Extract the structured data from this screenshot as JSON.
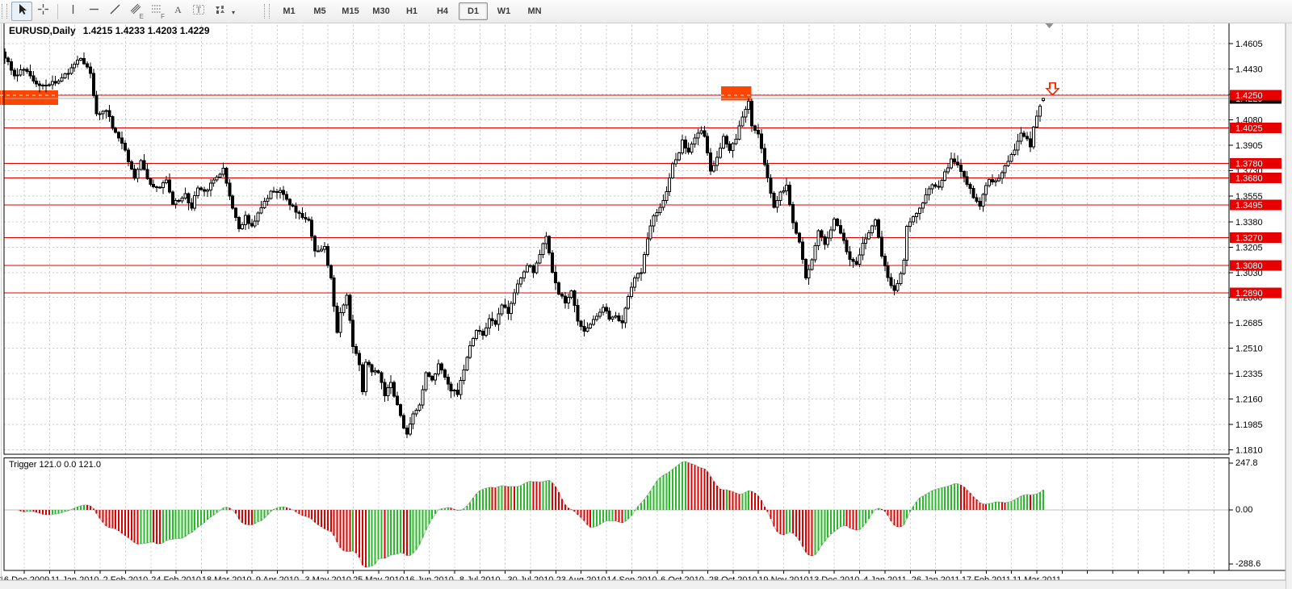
{
  "toolbar": {
    "tools": [
      {
        "id": "cursor",
        "title": "Cursor",
        "active": true
      },
      {
        "id": "crosshair",
        "title": "Crosshair",
        "active": false
      },
      {
        "id": "sep1",
        "separator": true
      },
      {
        "id": "vertical-line",
        "title": "Vertical Line",
        "active": false
      },
      {
        "id": "horizontal-line",
        "title": "Horizontal Line",
        "active": false
      },
      {
        "id": "trendline",
        "title": "Trendline",
        "active": false
      },
      {
        "id": "equidistant-channel",
        "title": "Equidistant Channel",
        "sub": "E",
        "active": false
      },
      {
        "id": "fibonacci",
        "title": "Fibonacci Retracement",
        "sub": "F",
        "active": false
      },
      {
        "id": "text",
        "title": "Text",
        "active": false
      },
      {
        "id": "text-label",
        "title": "Text Label",
        "active": false
      },
      {
        "id": "arrows",
        "title": "Arrows",
        "dropdown": true,
        "active": false
      }
    ],
    "timeframes": [
      "M1",
      "M5",
      "M15",
      "M30",
      "H1",
      "H4",
      "D1",
      "W1",
      "MN"
    ],
    "active_timeframe": "D1"
  },
  "chart": {
    "title": "EURUSD,Daily",
    "ohlc_text": "1.4215 1.4233 1.4203 1.4229",
    "indicator_label": "Trigger 121.0 0.0 121.0"
  },
  "chart_data": {
    "type": "candlestick",
    "symbol": "EURUSD",
    "period": "Daily",
    "last_candle": {
      "open": 1.4215,
      "high": 1.4233,
      "low": 1.4203,
      "close": 1.4229
    },
    "bid": "1.4229",
    "y_ticks": [
      "1.4605",
      "1.4430",
      "1.4255",
      "1.4080",
      "1.3905",
      "1.3730",
      "1.3555",
      "1.3380",
      "1.3205",
      "1.3030",
      "1.2860",
      "1.2685",
      "1.2510",
      "1.2335",
      "1.2160",
      "1.1985",
      "1.1810"
    ],
    "x_labels": [
      "16 Dec 2009",
      "11 Jan 2010",
      "2 Feb 2010",
      "24 Feb 2010",
      "18 Mar 2010",
      "9 Apr 2010",
      "3 May 2010",
      "25 May 2010",
      "16 Jun 2010",
      "8 Jul 2010",
      "30 Jul 2010",
      "23 Aug 2010",
      "14 Sep 2010",
      "6 Oct 2010",
      "28 Oct 2010",
      "19 Nov 2010",
      "13 Dec 2010",
      "4 Jan 2011",
      "26 Jan 2011",
      "17 Feb 2011",
      "11 Mar 2011"
    ],
    "levels": [
      "1.4250",
      "1.4025",
      "1.3780",
      "1.3680",
      "1.3495",
      "1.3270",
      "1.3080",
      "1.2890"
    ],
    "ylim": [
      1.181,
      1.4605
    ],
    "grid": true,
    "candle_count": 329,
    "close_anchors": [
      [
        0,
        1.451
      ],
      [
        3,
        1.438
      ],
      [
        6,
        1.443
      ],
      [
        9,
        1.434
      ],
      [
        13,
        1.432
      ],
      [
        16,
        1.434
      ],
      [
        20,
        1.441
      ],
      [
        24,
        1.451
      ],
      [
        27,
        1.441
      ],
      [
        29,
        1.411
      ],
      [
        32,
        1.415
      ],
      [
        34,
        1.403
      ],
      [
        37,
        1.393
      ],
      [
        40,
        1.374
      ],
      [
        41,
        1.368
      ],
      [
        43,
        1.379
      ],
      [
        46,
        1.363
      ],
      [
        49,
        1.361
      ],
      [
        51,
        1.368
      ],
      [
        53,
        1.351
      ],
      [
        57,
        1.356
      ],
      [
        59,
        1.348
      ],
      [
        61,
        1.362
      ],
      [
        63,
        1.358
      ],
      [
        66,
        1.366
      ],
      [
        69,
        1.374
      ],
      [
        71,
        1.357
      ],
      [
        74,
        1.332
      ],
      [
        76,
        1.341
      ],
      [
        78,
        1.334
      ],
      [
        81,
        1.348
      ],
      [
        84,
        1.358
      ],
      [
        87,
        1.359
      ],
      [
        90,
        1.35
      ],
      [
        93,
        1.343
      ],
      [
        96,
        1.338
      ],
      [
        98,
        1.317
      ],
      [
        101,
        1.32
      ],
      [
        103,
        1.298
      ],
      [
        105,
        1.262
      ],
      [
        106,
        1.276
      ],
      [
        108,
        1.287
      ],
      [
        110,
        1.253
      ],
      [
        112,
        1.24
      ],
      [
        113,
        1.22
      ],
      [
        114,
        1.242
      ],
      [
        116,
        1.236
      ],
      [
        118,
        1.234
      ],
      [
        120,
        1.219
      ],
      [
        122,
        1.227
      ],
      [
        124,
        1.211
      ],
      [
        126,
        1.197
      ],
      [
        127,
        1.192
      ],
      [
        129,
        1.205
      ],
      [
        131,
        1.212
      ],
      [
        133,
        1.233
      ],
      [
        135,
        1.23
      ],
      [
        137,
        1.239
      ],
      [
        139,
        1.231
      ],
      [
        141,
        1.223
      ],
      [
        143,
        1.219
      ],
      [
        145,
        1.237
      ],
      [
        147,
        1.254
      ],
      [
        149,
        1.264
      ],
      [
        151,
        1.259
      ],
      [
        153,
        1.272
      ],
      [
        155,
        1.267
      ],
      [
        157,
        1.282
      ],
      [
        159,
        1.276
      ],
      [
        161,
        1.289
      ],
      [
        163,
        1.299
      ],
      [
        165,
        1.308
      ],
      [
        167,
        1.304
      ],
      [
        169,
        1.316
      ],
      [
        171,
        1.328
      ],
      [
        173,
        1.302
      ],
      [
        175,
        1.288
      ],
      [
        177,
        1.283
      ],
      [
        179,
        1.29
      ],
      [
        181,
        1.271
      ],
      [
        183,
        1.263
      ],
      [
        185,
        1.268
      ],
      [
        187,
        1.273
      ],
      [
        189,
        1.28
      ],
      [
        191,
        1.271
      ],
      [
        193,
        1.272
      ],
      [
        195,
        1.268
      ],
      [
        197,
        1.287
      ],
      [
        199,
        1.299
      ],
      [
        201,
        1.304
      ],
      [
        203,
        1.327
      ],
      [
        205,
        1.342
      ],
      [
        207,
        1.349
      ],
      [
        209,
        1.358
      ],
      [
        211,
        1.379
      ],
      [
        213,
        1.384
      ],
      [
        214,
        1.393
      ],
      [
        216,
        1.386
      ],
      [
        218,
        1.397
      ],
      [
        220,
        1.4
      ],
      [
        221,
        1.397
      ],
      [
        223,
        1.373
      ],
      [
        225,
        1.381
      ],
      [
        227,
        1.396
      ],
      [
        229,
        1.386
      ],
      [
        231,
        1.395
      ],
      [
        233,
        1.411
      ],
      [
        235,
        1.421
      ],
      [
        236,
        1.403
      ],
      [
        238,
        1.398
      ],
      [
        240,
        1.378
      ],
      [
        241,
        1.369
      ],
      [
        243,
        1.348
      ],
      [
        245,
        1.358
      ],
      [
        247,
        1.362
      ],
      [
        249,
        1.337
      ],
      [
        251,
        1.324
      ],
      [
        253,
        1.298
      ],
      [
        255,
        1.313
      ],
      [
        257,
        1.331
      ],
      [
        259,
        1.323
      ],
      [
        261,
        1.332
      ],
      [
        262,
        1.339
      ],
      [
        264,
        1.331
      ],
      [
        265,
        1.324
      ],
      [
        267,
        1.312
      ],
      [
        269,
        1.309
      ],
      [
        271,
        1.322
      ],
      [
        273,
        1.33
      ],
      [
        275,
        1.338
      ],
      [
        277,
        1.315
      ],
      [
        279,
        1.299
      ],
      [
        281,
        1.291
      ],
      [
        282,
        1.295
      ],
      [
        284,
        1.312
      ],
      [
        285,
        1.336
      ],
      [
        287,
        1.342
      ],
      [
        289,
        1.347
      ],
      [
        291,
        1.357
      ],
      [
        293,
        1.362
      ],
      [
        295,
        1.361
      ],
      [
        297,
        1.371
      ],
      [
        299,
        1.381
      ],
      [
        301,
        1.377
      ],
      [
        303,
        1.369
      ],
      [
        305,
        1.36
      ],
      [
        306,
        1.355
      ],
      [
        308,
        1.349
      ],
      [
        309,
        1.357
      ],
      [
        311,
        1.368
      ],
      [
        313,
        1.365
      ],
      [
        315,
        1.373
      ],
      [
        317,
        1.38
      ],
      [
        319,
        1.388
      ],
      [
        321,
        1.399
      ],
      [
        323,
        1.394
      ],
      [
        324,
        1.39
      ],
      [
        325,
        1.402
      ],
      [
        326,
        1.411
      ],
      [
        327,
        1.418
      ],
      [
        328,
        1.4229
      ]
    ],
    "indicator": {
      "name": "Trigger",
      "values_label": "Trigger 121.0 0.0 121.0",
      "y_ticks": [
        "247.8",
        "0.00",
        "-288.6"
      ],
      "max": 247.8,
      "min": -288.6,
      "fast_period": 5,
      "slow_period": 34,
      "scale": 10000
    },
    "objects": {
      "rectangles": [
        {
          "i0": -1.6,
          "i1": 16.8,
          "p0": 1.4183,
          "p1": 1.4284
        },
        {
          "i0": 226.3,
          "i1": 235.8,
          "p0": 1.4214,
          "p1": 1.4311
        }
      ],
      "sell_arrow": {
        "i": 331,
        "price": 1.4335
      },
      "shift_marker_i": 330
    },
    "colors": {
      "up_candle": "#ffffff",
      "down_candle": "#000000",
      "candle_border": "#000000",
      "level": "#e60000",
      "level_label_bg": "#e60000",
      "level_label_text": "#ffffff",
      "bid_line": "#b0b0b0",
      "bid_label_bg": "#000000",
      "bid_label_text": "#ffffff",
      "grid": "#c9c9c9",
      "border": "#000000",
      "axis_text": "#000000",
      "hist_up": "#27bb27",
      "hist_down": "#dd0000",
      "trigger_line": "#b9b9b9",
      "object_fill": "#ff4500",
      "arrow_red": "#ff2a00",
      "shift_marker": "#909090",
      "frame_gray": "#f0f0f0"
    }
  }
}
